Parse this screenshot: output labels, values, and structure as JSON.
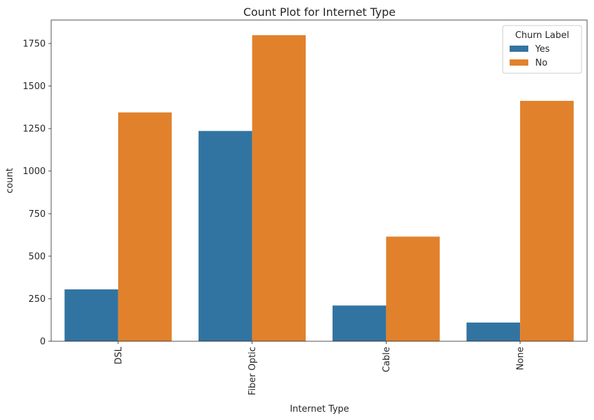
{
  "chart_data": {
    "type": "bar",
    "title": "Count Plot for Internet Type",
    "xlabel": "Internet Type",
    "ylabel": "count",
    "categories": [
      "DSL",
      "Fiber Optic",
      "Cable",
      "None"
    ],
    "series": [
      {
        "name": "Yes",
        "color": "#3274a1",
        "values": [
          305,
          1236,
          210,
          110
        ]
      },
      {
        "name": "No",
        "color": "#e1812c",
        "values": [
          1345,
          1799,
          615,
          1413
        ]
      }
    ],
    "ylim": [
      0,
      1888
    ],
    "yticks": [
      0,
      250,
      500,
      750,
      1000,
      1250,
      1500,
      1750
    ],
    "legend": {
      "title": "Churn Label",
      "placement": "top-right"
    },
    "grid": false
  }
}
